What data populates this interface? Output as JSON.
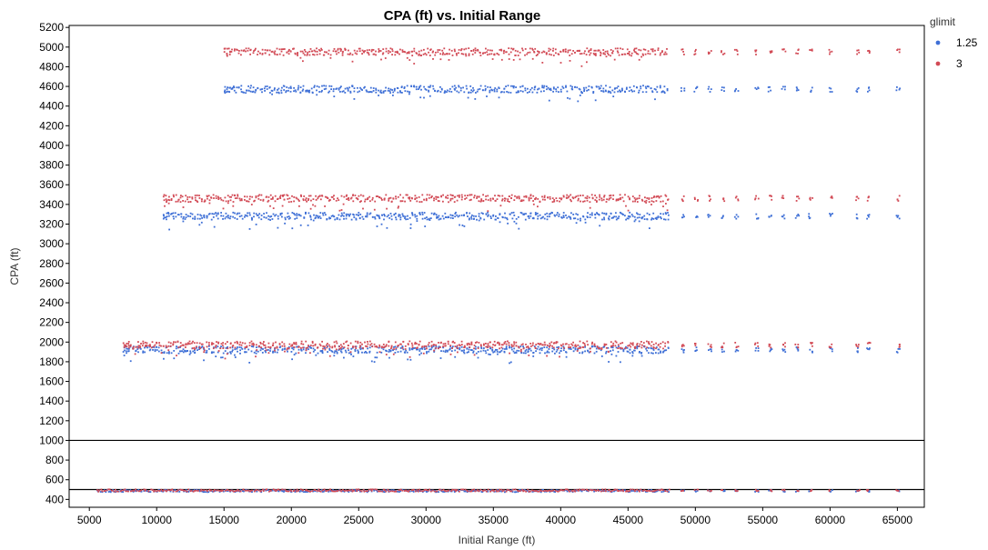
{
  "chart_data": {
    "type": "scatter",
    "title": "CPA (ft) vs. Initial Range",
    "xlabel": "Initial Range (ft)",
    "ylabel": "CPA (ft)",
    "xlim": [
      3500,
      67000
    ],
    "ylim": [
      320,
      5220
    ],
    "xticks": [
      "5000",
      "10000",
      "15000",
      "20000",
      "25000",
      "30000",
      "35000",
      "40000",
      "45000",
      "50000",
      "55000",
      "60000",
      "65000"
    ],
    "yticks": [
      "400",
      "600",
      "800",
      "1000",
      "1200",
      "1400",
      "1600",
      "1800",
      "2000",
      "2200",
      "2400",
      "2600",
      "2800",
      "3000",
      "3200",
      "3400",
      "3600",
      "3800",
      "4000",
      "4200",
      "4400",
      "4600",
      "4800",
      "5000",
      "5200"
    ],
    "reference_lines_y": [
      1000,
      500
    ],
    "grid": false,
    "legend": {
      "title": "glimit",
      "position": "top-right"
    },
    "series": [
      {
        "name": "1.25",
        "color": "#3e6fd6",
        "bands": [
          {
            "cpa": 4570,
            "x_start": 15000,
            "x_end": 65000
          },
          {
            "cpa": 3280,
            "x_start": 10500,
            "x_end": 65000
          },
          {
            "cpa": 1920,
            "x_start": 7500,
            "x_end": 65000
          },
          {
            "cpa": 485,
            "x_start": 5500,
            "x_end": 65000
          }
        ]
      },
      {
        "name": "3",
        "color": "#d24a55",
        "bands": [
          {
            "cpa": 4950,
            "x_start": 15000,
            "x_end": 65000
          },
          {
            "cpa": 3460,
            "x_start": 10500,
            "x_end": 65000
          },
          {
            "cpa": 1970,
            "x_start": 7500,
            "x_end": 65000
          },
          {
            "cpa": 490,
            "x_start": 5500,
            "x_end": 65000
          }
        ]
      }
    ]
  }
}
